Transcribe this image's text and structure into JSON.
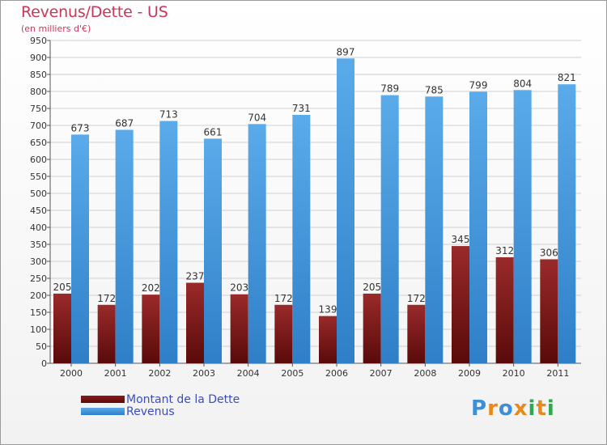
{
  "title": "Revenus/Dette - US",
  "subtitle": "(en milliers d'€)",
  "chart_data": {
    "type": "bar",
    "categories": [
      "2000",
      "2001",
      "2002",
      "2003",
      "2004",
      "2005",
      "2006",
      "2007",
      "2008",
      "2009",
      "2010",
      "2011"
    ],
    "series": [
      {
        "name": "Montant de la Dette",
        "values": [
          205,
          172,
          202,
          237,
          203,
          172,
          139,
          205,
          172,
          345,
          312,
          306
        ],
        "color": "#8b1a1a"
      },
      {
        "name": "Revenus",
        "values": [
          673,
          687,
          713,
          661,
          704,
          731,
          897,
          789,
          785,
          799,
          804,
          821
        ],
        "color": "#4a9fe0"
      }
    ],
    "ylim": [
      0,
      950
    ],
    "ytick_step": 50,
    "grid": true,
    "legend": "bottom-left"
  },
  "logo": {
    "text": "Proxiti",
    "colors": [
      "#3a8fd8",
      "#e8891a",
      "#3a8fd8",
      "#e8891a",
      "#2fa84f",
      "#e8891a",
      "#2fa84f"
    ]
  }
}
